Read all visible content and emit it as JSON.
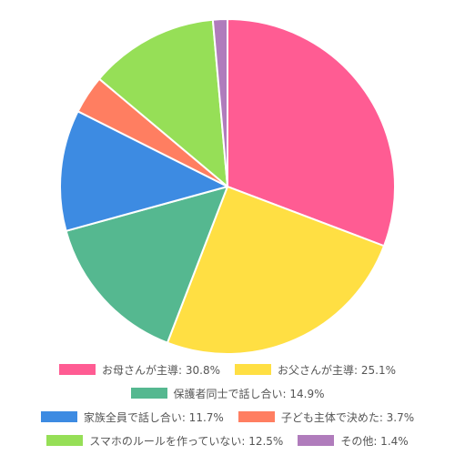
{
  "chart_data": {
    "type": "pie",
    "title": "",
    "legend_position": "bottom",
    "border_color": "#ffffff",
    "slices": [
      {
        "label": "お母さんが主導",
        "value": 30.8,
        "legend_text": "お母さんが主導: 30.8%",
        "color": "#ff5c93"
      },
      {
        "label": "お父さんが主導",
        "value": 25.1,
        "legend_text": "お父さんが主導: 25.1%",
        "color": "#ffdf43"
      },
      {
        "label": "保護者同士で話し合い",
        "value": 14.9,
        "legend_text": "保護者同士で話し合い: 14.9%",
        "color": "#55b890"
      },
      {
        "label": "家族全員で話し合い",
        "value": 11.7,
        "legend_text": "家族全員で話し合い: 11.7%",
        "color": "#3d8be2"
      },
      {
        "label": "子ども主体で決めた",
        "value": 3.7,
        "legend_text": "子ども主体で決めた: 3.7%",
        "color": "#ff7e61"
      },
      {
        "label": "スマホのルールを作っていない",
        "value": 12.5,
        "legend_text": "スマホのルールを作っていない: 12.5%",
        "color": "#96df57"
      },
      {
        "label": "その他",
        "value": 1.4,
        "legend_text": "その他: 1.4%",
        "color": "#b07cbc"
      }
    ]
  }
}
